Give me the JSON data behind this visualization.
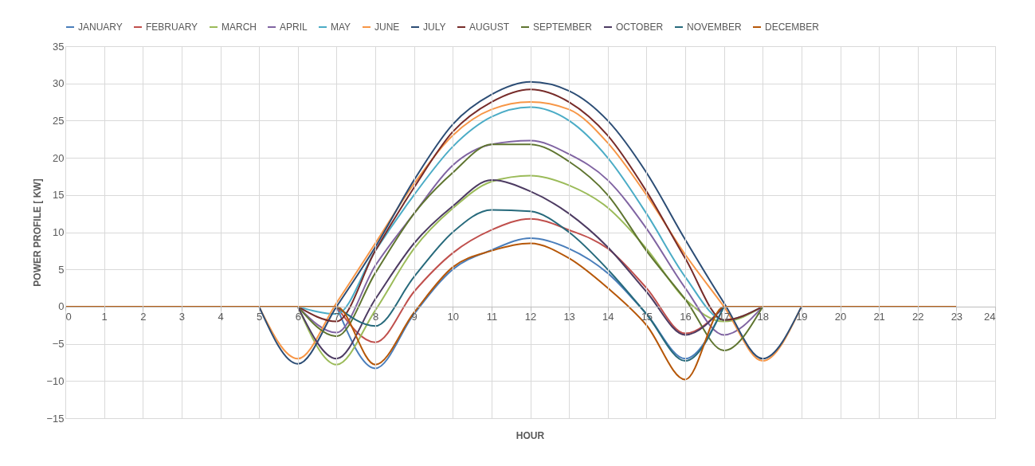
{
  "chart_data": {
    "type": "line",
    "xlabel": "HOUR",
    "ylabel": "POWER PROFILE [ KW]",
    "x": [
      0,
      1,
      2,
      3,
      4,
      5,
      6,
      7,
      8,
      9,
      10,
      11,
      12,
      13,
      14,
      15,
      16,
      17,
      18,
      19,
      20,
      21,
      22,
      23
    ],
    "xlim": [
      0,
      24
    ],
    "xticks": [
      0,
      1,
      2,
      3,
      4,
      5,
      6,
      7,
      8,
      9,
      10,
      11,
      12,
      13,
      14,
      15,
      16,
      17,
      18,
      19,
      20,
      21,
      22,
      23,
      24
    ],
    "ylim": [
      -15,
      35
    ],
    "yticks": [
      -15,
      -10,
      -5,
      0,
      5,
      10,
      15,
      20,
      25,
      30,
      35
    ],
    "grid": true,
    "legend": "top",
    "marker": "none",
    "line_style": "solid",
    "series": [
      {
        "name": "JANUARY",
        "color": "#4a7ebb",
        "values": [
          null,
          null,
          null,
          null,
          null,
          null,
          null,
          0,
          -8.3,
          -1,
          5,
          7.6,
          9.2,
          7.8,
          4.5,
          -1,
          -7,
          0,
          null,
          null,
          null,
          null,
          null,
          null
        ]
      },
      {
        "name": "FEBRUARY",
        "color": "#c0504d",
        "values": [
          null,
          null,
          null,
          null,
          null,
          null,
          null,
          0,
          -4.8,
          2,
          7.2,
          10.3,
          11.8,
          10.3,
          7.8,
          2.5,
          -3.6,
          0,
          null,
          null,
          null,
          null,
          null,
          null
        ]
      },
      {
        "name": "MARCH",
        "color": "#9bbb59",
        "values": [
          null,
          null,
          null,
          null,
          null,
          null,
          0,
          -7.8,
          -0.5,
          7.8,
          13.2,
          16.8,
          17.6,
          16.3,
          13.3,
          7.8,
          1,
          -2,
          0,
          null,
          null,
          null,
          null,
          null
        ]
      },
      {
        "name": "APRIL",
        "color": "#8064a2",
        "values": [
          null,
          null,
          null,
          null,
          null,
          null,
          0,
          -3.5,
          5.5,
          12.5,
          19,
          21.8,
          22.3,
          20.5,
          17,
          10.5,
          2.5,
          -3.8,
          0,
          null,
          null,
          null,
          null,
          null
        ]
      },
      {
        "name": "MAY",
        "color": "#4bacc6",
        "values": [
          null,
          null,
          null,
          null,
          null,
          null,
          0,
          -1,
          7.5,
          15,
          21.5,
          25.5,
          26.8,
          25,
          20,
          12.5,
          4,
          -1.8,
          0,
          null,
          null,
          null,
          null,
          null
        ]
      },
      {
        "name": "JUNE",
        "color": "#f79646",
        "values": [
          null,
          null,
          null,
          null,
          null,
          0,
          -7,
          0.5,
          8.5,
          16.5,
          23,
          26.5,
          27.5,
          26.5,
          22,
          15,
          7,
          0,
          -7.3,
          0,
          null,
          null,
          null,
          null
        ]
      },
      {
        "name": "JULY",
        "color": "#2c4d75",
        "values": [
          null,
          null,
          null,
          null,
          null,
          0,
          -7.7,
          0,
          8,
          17,
          24.5,
          28.5,
          30.2,
          29,
          25,
          18,
          9,
          0.5,
          -7,
          0,
          null,
          null,
          null,
          null
        ]
      },
      {
        "name": "AUGUST",
        "color": "#772c2a",
        "values": [
          null,
          null,
          null,
          null,
          null,
          null,
          0,
          -2,
          7.5,
          16,
          23.5,
          27.5,
          29.2,
          27.5,
          23,
          15.5,
          6.5,
          -1.8,
          0,
          null,
          null,
          null,
          null,
          null
        ]
      },
      {
        "name": "SEPTEMBER",
        "color": "#5f7530",
        "values": [
          null,
          null,
          null,
          null,
          null,
          null,
          0,
          -4,
          4.5,
          12.5,
          18,
          21.8,
          21.8,
          19.5,
          15,
          7.5,
          1,
          -5.9,
          0,
          null,
          null,
          null,
          null,
          null
        ]
      },
      {
        "name": "OCTOBER",
        "color": "#4d3b62",
        "values": [
          null,
          null,
          null,
          null,
          null,
          null,
          0,
          -7,
          1,
          8.5,
          13.5,
          17,
          15.5,
          12.5,
          8,
          2,
          -3.8,
          0,
          null,
          null,
          null,
          null,
          null,
          null
        ]
      },
      {
        "name": "NOVEMBER",
        "color": "#276a7c",
        "values": [
          null,
          null,
          null,
          null,
          null,
          null,
          null,
          0,
          -2.6,
          4,
          10,
          13,
          12.8,
          10,
          5,
          -1,
          -7.3,
          0,
          null,
          null,
          null,
          null,
          null,
          null
        ]
      },
      {
        "name": "DECEMBER",
        "color": "#b65708",
        "values": [
          0,
          0,
          0,
          0,
          0,
          0,
          0,
          0,
          -7.8,
          -0.8,
          5.3,
          7.5,
          8.5,
          6.5,
          2.5,
          -2.5,
          -9.8,
          0,
          0,
          0,
          0,
          0,
          0,
          0
        ]
      }
    ]
  }
}
